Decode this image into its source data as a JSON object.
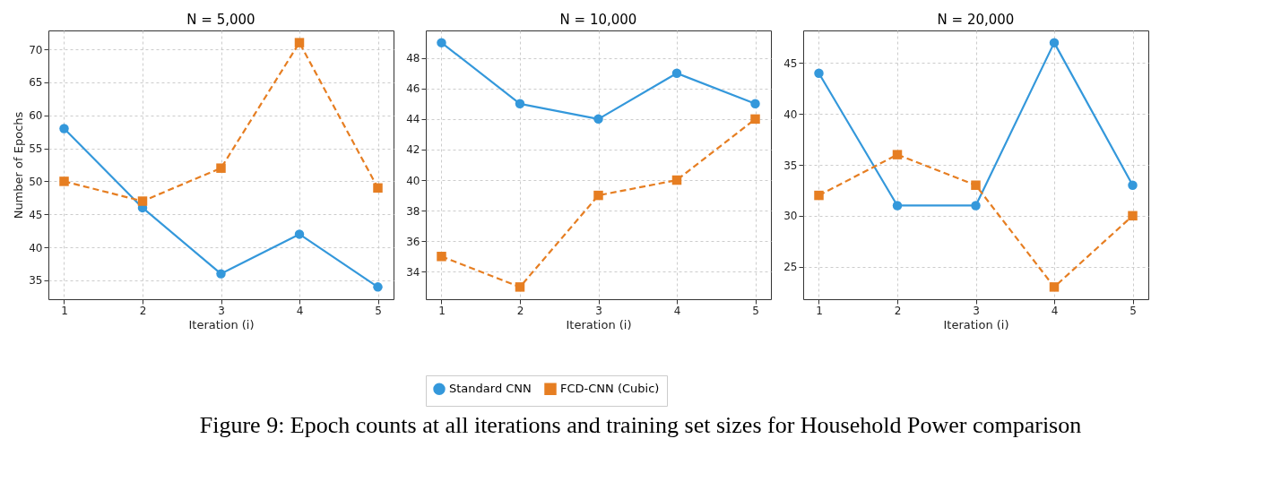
{
  "chart_data": [
    {
      "type": "line",
      "title": "N = 5,000",
      "xlabel": "Iteration (i)",
      "ylabel": "Number of Epochs",
      "x": [
        1,
        2,
        3,
        4,
        5
      ],
      "xlim": [
        0.8,
        5.2
      ],
      "xticks": [
        1,
        2,
        3,
        4,
        5
      ],
      "ylim": [
        32.15,
        72.85
      ],
      "yticks": [
        35,
        40,
        45,
        50,
        55,
        60,
        65,
        70
      ],
      "grid": true,
      "series": [
        {
          "color": "#3498db",
          "marker": "circle",
          "line_style": "solid",
          "values": [
            58,
            46,
            36,
            42,
            34
          ]
        },
        {
          "color": "#e67e22",
          "marker": "square",
          "line_style": "dashed",
          "values": [
            50,
            47,
            52,
            71,
            49
          ]
        }
      ]
    },
    {
      "type": "line",
      "title": "N = 10,000",
      "xlabel": "Iteration (i)",
      "x": [
        1,
        2,
        3,
        4,
        5
      ],
      "xlim": [
        0.8,
        5.2
      ],
      "xticks": [
        1,
        2,
        3,
        4,
        5
      ],
      "ylim": [
        32.2,
        49.8
      ],
      "yticks": [
        34,
        36,
        38,
        40,
        42,
        44,
        46,
        48
      ],
      "grid": true,
      "legend": "bottom",
      "annotations": [
        "Figure 9: Epoch counts at all iterations and training set sizes for Household Power comparison"
      ],
      "series": [
        {
          "name": "Standard CNN",
          "color": "#3498db",
          "marker": "circle",
          "line_style": "solid",
          "values": [
            49,
            45,
            44,
            47,
            45
          ]
        },
        {
          "name": "FCD-CNN (Cubic)",
          "color": "#e67e22",
          "marker": "square",
          "line_style": "dashed",
          "values": [
            35,
            33,
            39,
            40,
            44
          ]
        }
      ]
    },
    {
      "type": "line",
      "title": "N = 20,000",
      "xlabel": "Iteration (i)",
      "x": [
        1,
        2,
        3,
        4,
        5
      ],
      "xlim": [
        0.8,
        5.2
      ],
      "xticks": [
        1,
        2,
        3,
        4,
        5
      ],
      "ylim": [
        21.8,
        48.2
      ],
      "yticks": [
        25,
        30,
        35,
        40,
        45
      ],
      "grid": true,
      "series": [
        {
          "color": "#3498db",
          "marker": "circle",
          "line_style": "solid",
          "values": [
            44,
            31,
            31,
            47,
            33
          ]
        },
        {
          "color": "#e67e22",
          "marker": "square",
          "line_style": "dashed",
          "values": [
            32,
            36,
            33,
            23,
            30
          ]
        }
      ]
    }
  ]
}
